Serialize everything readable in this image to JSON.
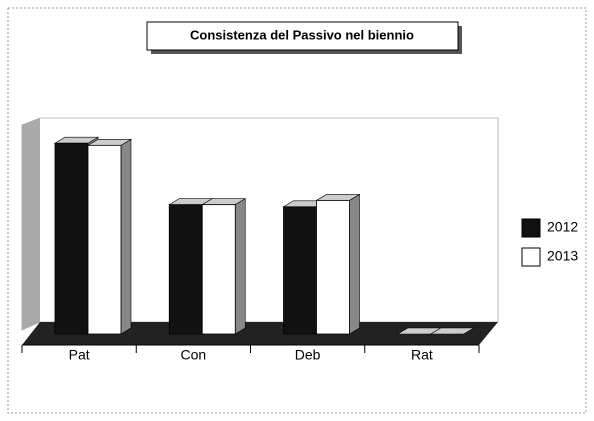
{
  "chart_data": {
    "type": "bar3d",
    "title": "Consistenza del Passivo nel biennio",
    "categories": [
      "Pat",
      "Con",
      "Deb",
      "Rat"
    ],
    "series": [
      {
        "name": "2012",
        "color": "#111111",
        "values": [
          90,
          61,
          60,
          0
        ]
      },
      {
        "name": "2013",
        "color": "#ffffff",
        "values": [
          89,
          61,
          63,
          0
        ]
      }
    ],
    "ylim": [
      0,
      100
    ],
    "legend": "right"
  }
}
